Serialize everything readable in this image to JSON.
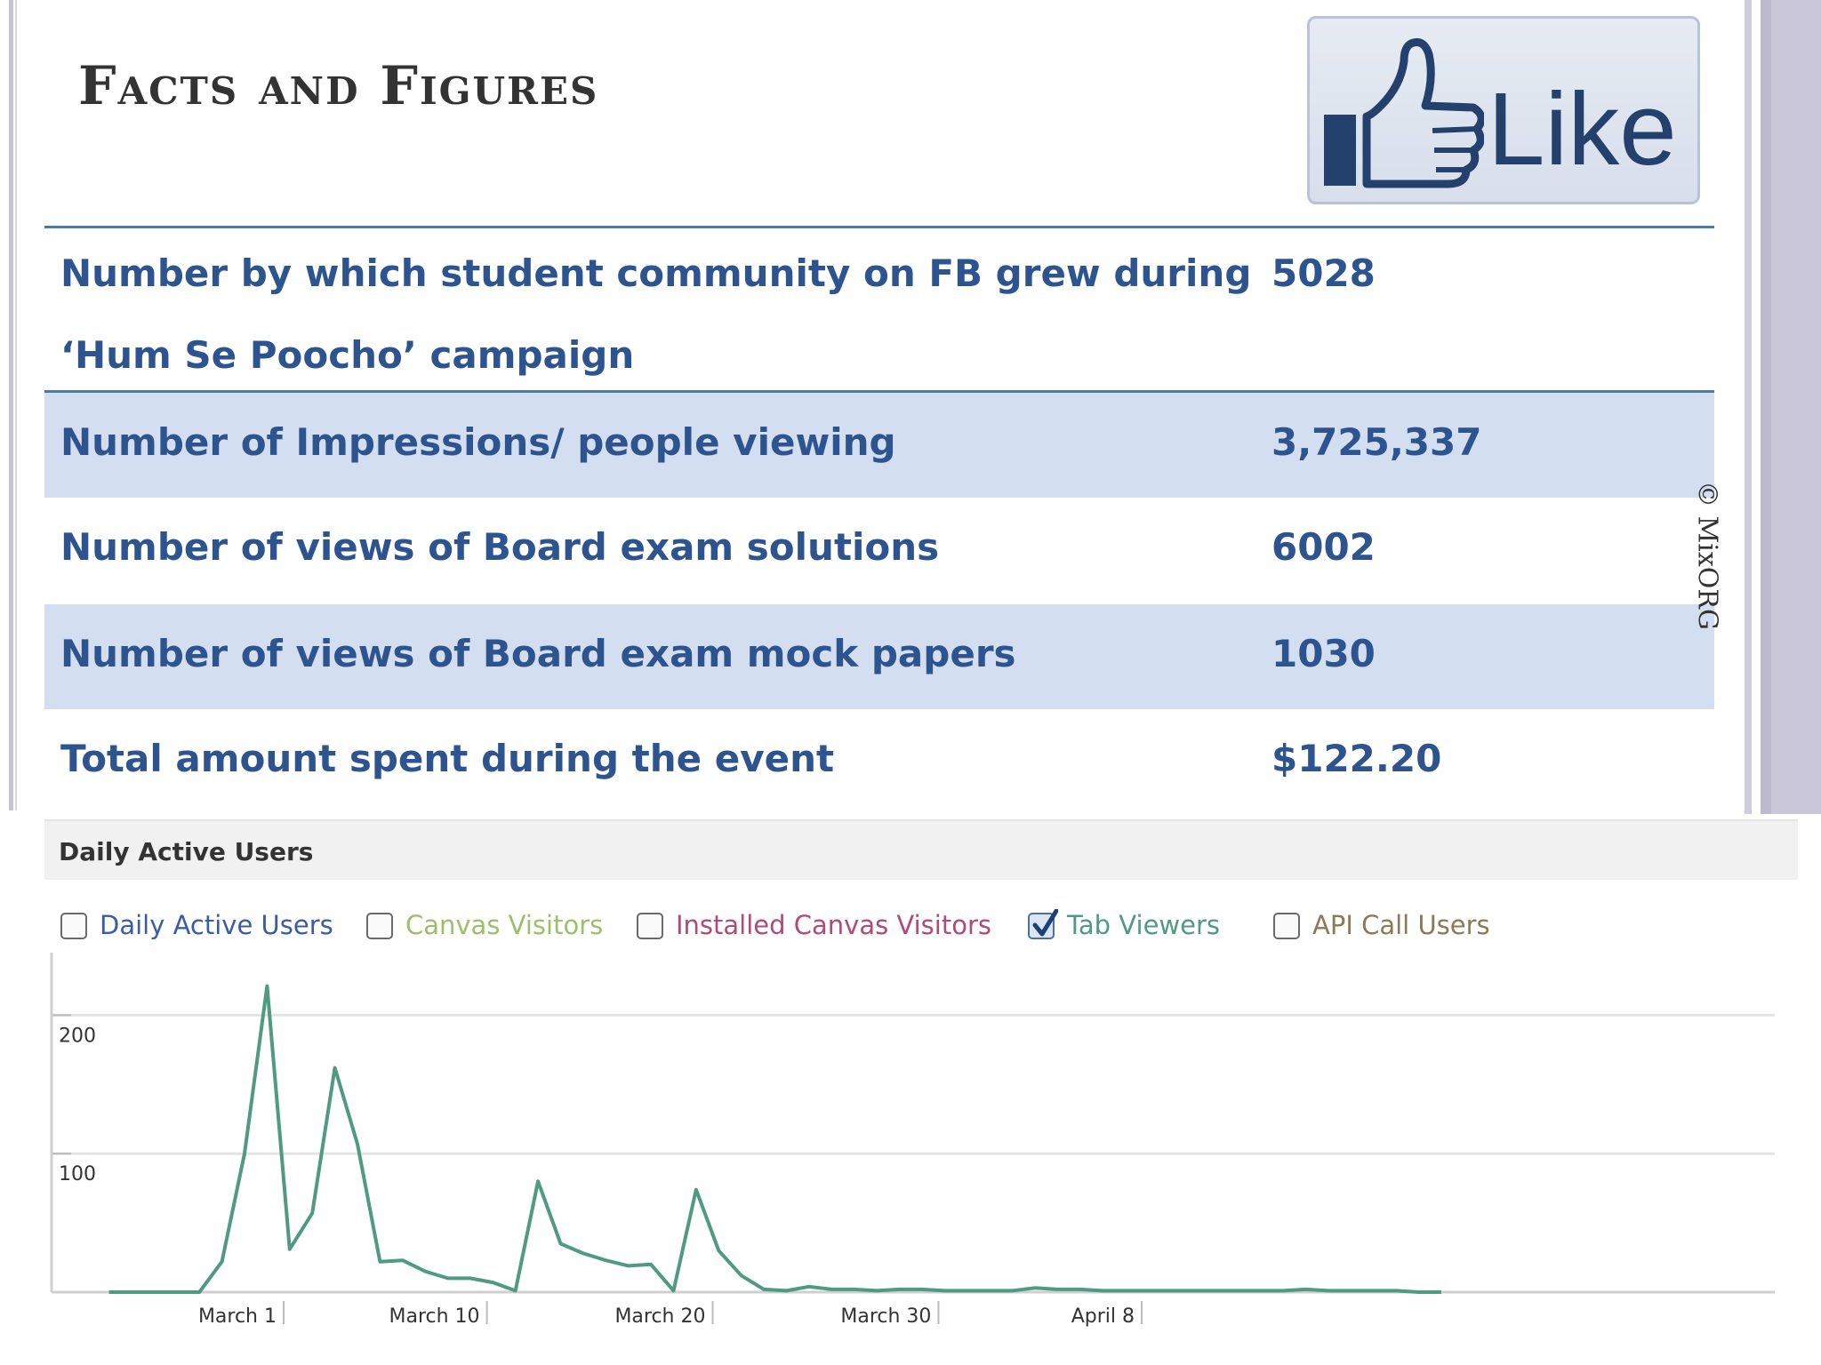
{
  "slide": {
    "title": "Facts and Figures",
    "like_label": "Like",
    "copyright": "© MixORG"
  },
  "facts": [
    {
      "label_line1": "Number by which student community on FB grew during",
      "label_line2": "‘Hum Se Poocho’ campaign",
      "value": "5028"
    },
    {
      "label_line1": "Number of Impressions/ people viewing",
      "value": "3,725,337"
    },
    {
      "label_line1": "Number of views of Board exam solutions",
      "value": "6002"
    },
    {
      "label_line1": "Number of views of Board exam mock papers",
      "value": "1030"
    },
    {
      "label_line1": "Total amount spent during the event",
      "value": "$122.20"
    }
  ],
  "colors": {
    "slide_text": "#2e5490",
    "row_shade": "#d3dff0",
    "series_line": "#4f9a80"
  },
  "chart_panel": {
    "header": "Daily Active Users",
    "legend": [
      {
        "label": "Daily Active Users",
        "checked": false,
        "color": "#3a5ca8"
      },
      {
        "label": "Canvas Visitors",
        "checked": false,
        "color": "#9cbf6a"
      },
      {
        "label": "Installed Canvas Visitors",
        "checked": false,
        "color": "#b04a78"
      },
      {
        "label": "Tab Viewers",
        "checked": true,
        "color": "#4f9a80"
      },
      {
        "label": "API Call Users",
        "checked": false,
        "color": "#8a7a55"
      }
    ]
  },
  "chart_data": {
    "type": "line",
    "title": "",
    "xlabel": "",
    "ylabel": "",
    "ylim": [
      0,
      230
    ],
    "yticks": [
      100,
      200
    ],
    "grid": true,
    "x_tick_labels": [
      "March 1",
      "March 10",
      "March 20",
      "March 30",
      "April 8"
    ],
    "x_tick_days": [
      1,
      10,
      20,
      30,
      39
    ],
    "series": [
      {
        "name": "Tab Viewers",
        "x": [
          -5,
          -4,
          -3,
          -2,
          -1,
          0,
          1,
          2,
          3,
          4,
          5,
          6,
          7,
          8,
          9,
          10,
          11,
          12,
          13,
          14,
          15,
          16,
          17,
          18,
          19,
          20,
          21,
          22,
          23,
          24,
          25,
          26,
          27,
          28,
          29,
          30,
          31,
          32,
          33,
          34,
          35,
          36,
          37,
          38,
          39,
          40,
          41,
          42,
          43,
          44,
          45,
          46,
          47,
          48,
          49,
          50,
          51,
          52,
          53,
          54
        ],
        "values": [
          0,
          0,
          0,
          0,
          0,
          22,
          100,
          221,
          31,
          57,
          162,
          107,
          22,
          23,
          15,
          10,
          10,
          7,
          1,
          80,
          35,
          28,
          23,
          19,
          20,
          1,
          74,
          30,
          12,
          2,
          1,
          4,
          2,
          2,
          1,
          2,
          2,
          1,
          1,
          1,
          1,
          3,
          2,
          2,
          1,
          1,
          1,
          1,
          1,
          1,
          1,
          1,
          1,
          2,
          1,
          1,
          1,
          1,
          0,
          0
        ]
      }
    ]
  }
}
